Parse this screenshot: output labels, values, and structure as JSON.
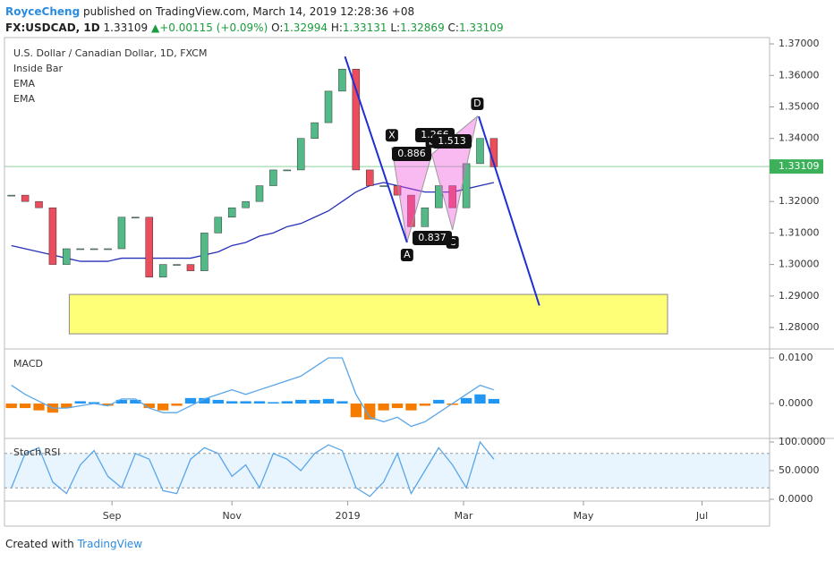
{
  "header": {
    "author": "RoyceCheng",
    "published": "published on TradingView.com, March 14, 2019 12:28:36 +08",
    "symbol": "FX:USDCAD, 1D",
    "last": "1.33109",
    "arrow": "▲",
    "change": "+0.00115 (+0.09%)",
    "o": "O:",
    "open": "1.32994",
    "h": "H:",
    "high": "1.33131",
    "l": "L:",
    "low": "1.32869",
    "c": "C:",
    "close": "1.33109"
  },
  "chart_data": [
    {
      "type": "candlestick",
      "title": "U.S. Dollar / Canadian Dollar, 1D, FXCM",
      "indicators": [
        "Inside Bar",
        "EMA",
        "EMA"
      ],
      "x": [
        0.5,
        1.5,
        2.5,
        3.5,
        4.5,
        5.5,
        6.5,
        7.5,
        8.5,
        9.5,
        10.5,
        11.5,
        12.5,
        13.5,
        14.5,
        15.5,
        16.5,
        17.5,
        18.5,
        19.5,
        20.5,
        21.5,
        22.5,
        23.5,
        24.5,
        25.5,
        26.5,
        27.5,
        28.5,
        29.5,
        30.5,
        31.5,
        32.5,
        33.5,
        34.5,
        35.5
      ],
      "values": [
        1.322,
        1.32,
        1.318,
        1.3,
        1.305,
        1.305,
        1.305,
        1.305,
        1.315,
        1.315,
        1.296,
        1.3,
        1.3,
        1.298,
        1.31,
        1.315,
        1.318,
        1.32,
        1.325,
        1.33,
        1.33,
        1.34,
        1.345,
        1.355,
        1.362,
        1.33,
        1.325,
        1.325,
        1.322,
        1.312,
        1.318,
        1.325,
        1.318,
        1.332,
        1.34,
        1.331
      ],
      "up_color": "#53b987",
      "down_color": "#eb4d5c",
      "ema": {
        "color": "#2630b8",
        "values": [
          1.306,
          1.305,
          1.304,
          1.303,
          1.302,
          1.301,
          1.301,
          1.301,
          1.302,
          1.302,
          1.302,
          1.302,
          1.302,
          1.302,
          1.303,
          1.304,
          1.306,
          1.307,
          1.309,
          1.31,
          1.312,
          1.313,
          1.315,
          1.317,
          1.32,
          1.323,
          1.325,
          1.326,
          1.325,
          1.324,
          1.323,
          1.323,
          1.323,
          1.324,
          1.325,
          1.326
        ]
      },
      "last_price": {
        "value": 1.33109,
        "label": "1.33109"
      },
      "zone": {
        "x": [
          4.7,
          48.1
        ],
        "y": [
          1.278,
          1.2905
        ]
      },
      "projections": [
        [
          [
            24.7,
            1.366
          ],
          [
            29.2,
            1.307
          ]
        ],
        [
          [
            34.4,
            1.347
          ],
          [
            38.8,
            1.287
          ]
        ]
      ],
      "pattern": [
        {
          "label": "X",
          "x": 28.1,
          "y": 1.337
        },
        {
          "label": "A",
          "x": 29.2,
          "y": 1.307
        },
        {
          "label": "B",
          "x": 31.0,
          "y": 1.335
        },
        {
          "label": "C",
          "x": 32.5,
          "y": 1.311
        },
        {
          "label": "D",
          "x": 34.3,
          "y": 1.347
        }
      ],
      "ratios": [
        1.266,
        0.886,
        1.513,
        0.837
      ],
      "xlim": [
        0,
        55.5
      ],
      "xticks": [
        {
          "value": 7.8,
          "label": "Sep"
        },
        {
          "value": 16.5,
          "label": "Nov"
        },
        {
          "value": 24.9,
          "label": "2019"
        },
        {
          "value": 33.3,
          "label": "Mar"
        },
        {
          "value": 42.0,
          "label": "May"
        },
        {
          "value": 50.6,
          "label": "Jul"
        }
      ],
      "ylim": [
        1.2732,
        1.372
      ],
      "yticks": [
        {
          "value": 1.28,
          "label": "1.28000"
        },
        {
          "value": 1.29,
          "label": "1.29000"
        },
        {
          "value": 1.3,
          "label": "1.30000"
        },
        {
          "value": 1.31,
          "label": "1.31000"
        },
        {
          "value": 1.32,
          "label": "1.32000"
        },
        {
          "value": 1.33,
          "label": "1.33000"
        },
        {
          "value": 1.34,
          "label": "1.34000"
        },
        {
          "value": 1.35,
          "label": "1.35000"
        },
        {
          "value": 1.36,
          "label": "1.36000"
        },
        {
          "value": 1.37,
          "label": "1.37000"
        }
      ]
    },
    {
      "type": "bar",
      "title": "MACD",
      "xlim": [
        0,
        55.5
      ],
      "pos_color": "#2196f3",
      "neg_color": "#f57c00",
      "values": [
        -0.001,
        -0.001,
        -0.0015,
        -0.002,
        -0.001,
        0.0005,
        0.0003,
        -0.0005,
        0.0008,
        0.0008,
        -0.001,
        -0.0015,
        -0.0005,
        0.0012,
        0.0012,
        0.0008,
        0.0005,
        0.0005,
        0.0005,
        0.0003,
        0.0005,
        0.0008,
        0.0008,
        0.001,
        0.0005,
        -0.003,
        -0.0035,
        -0.0015,
        -0.001,
        -0.0015,
        -0.0005,
        0.0008,
        -0.0003,
        0.0012,
        0.002,
        0.001
      ],
      "line": {
        "color": "#5aa6e8",
        "values": [
          0.004,
          0.002,
          0.0005,
          -0.001,
          -0.001,
          -0.0005,
          0,
          -0.0005,
          0.001,
          0.001,
          -0.001,
          -0.002,
          -0.002,
          -0.0005,
          0.001,
          0.002,
          0.003,
          0.002,
          0.003,
          0.004,
          0.005,
          0.006,
          0.008,
          0.01,
          0.01,
          0.002,
          -0.003,
          -0.004,
          -0.003,
          -0.005,
          -0.004,
          -0.002,
          0,
          0.002,
          0.004,
          0.003
        ]
      },
      "ylim": [
        -0.00765,
        0.01196
      ],
      "yticks": [
        {
          "value": 0,
          "label": "0.0000"
        },
        {
          "value": 0.01,
          "label": "0.0100"
        }
      ]
    },
    {
      "type": "line",
      "title": "Stoch RSI",
      "xlim": [
        0,
        55.5
      ],
      "color": "#5aa6e8",
      "band": [
        20,
        80
      ],
      "values": [
        20,
        80,
        90,
        30,
        10,
        60,
        85,
        40,
        20,
        80,
        70,
        15,
        10,
        70,
        90,
        80,
        40,
        60,
        20,
        80,
        70,
        50,
        80,
        95,
        85,
        20,
        5,
        30,
        80,
        10,
        50,
        90,
        60,
        20,
        100,
        70
      ],
      "ylim": [
        -3.1,
        106.25
      ],
      "yticks": [
        {
          "value": 0,
          "label": "0.0000"
        },
        {
          "value": 50,
          "label": "50.0000"
        },
        {
          "value": 100,
          "label": "100.0000"
        }
      ]
    }
  ],
  "footer": {
    "created": "Created with",
    "brand": "TradingView"
  }
}
